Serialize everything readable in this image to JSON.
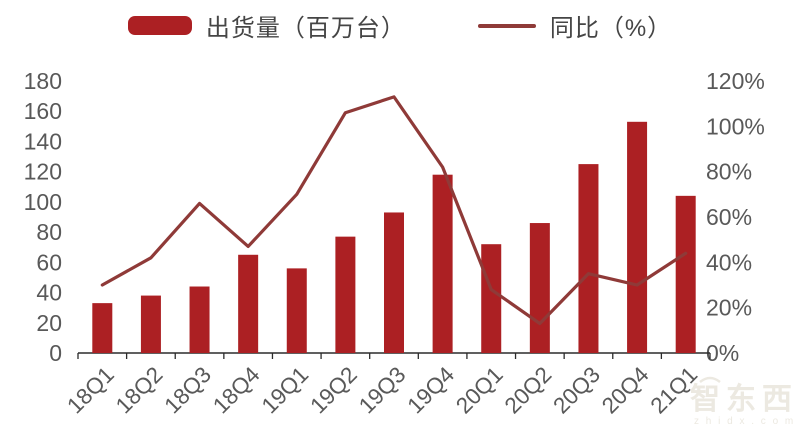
{
  "watermark": {
    "brand": "智东西",
    "domain": "z h i d x . c o m"
  },
  "chart_data": {
    "type": "bar+line",
    "categories": [
      "18Q1",
      "18Q2",
      "18Q3",
      "18Q4",
      "19Q1",
      "19Q2",
      "19Q3",
      "19Q4",
      "20Q1",
      "20Q2",
      "20Q3",
      "20Q4",
      "21Q1"
    ],
    "series": [
      {
        "name": "出货量（百万台）",
        "type": "bar",
        "axis": "left",
        "values": [
          33,
          38,
          44,
          65,
          56,
          77,
          93,
          118,
          72,
          86,
          125,
          153,
          104
        ]
      },
      {
        "name": "同比（%）",
        "type": "line",
        "axis": "right",
        "values": [
          30,
          42,
          66,
          47,
          70,
          106,
          113,
          82,
          28,
          13,
          35,
          30,
          44
        ]
      }
    ],
    "legend": [
      "出货量（百万台）",
      "同比（%）"
    ],
    "legend_position": "top-center",
    "title": "",
    "xlabel": "",
    "ylabel_left": "出货量（百万台）",
    "ylabel_right": "同比（%）",
    "grid": false,
    "left_axis": {
      "min": 0,
      "max": 180,
      "step": 20,
      "ticks": [
        "0",
        "20",
        "40",
        "60",
        "80",
        "100",
        "120",
        "140",
        "160",
        "180"
      ]
    },
    "right_axis": {
      "min": 0,
      "max": 120,
      "step": 20,
      "unit": "%",
      "ticks": [
        "0%",
        "20%",
        "40%",
        "60%",
        "80%",
        "100%",
        "120%"
      ]
    },
    "colors": {
      "bar": "#AC2023",
      "line": "#8F3A38",
      "axis": "#2b2b2b",
      "tick_label": "#595959",
      "legend_text": "#454545",
      "watermark": "#ECE9E1"
    }
  }
}
